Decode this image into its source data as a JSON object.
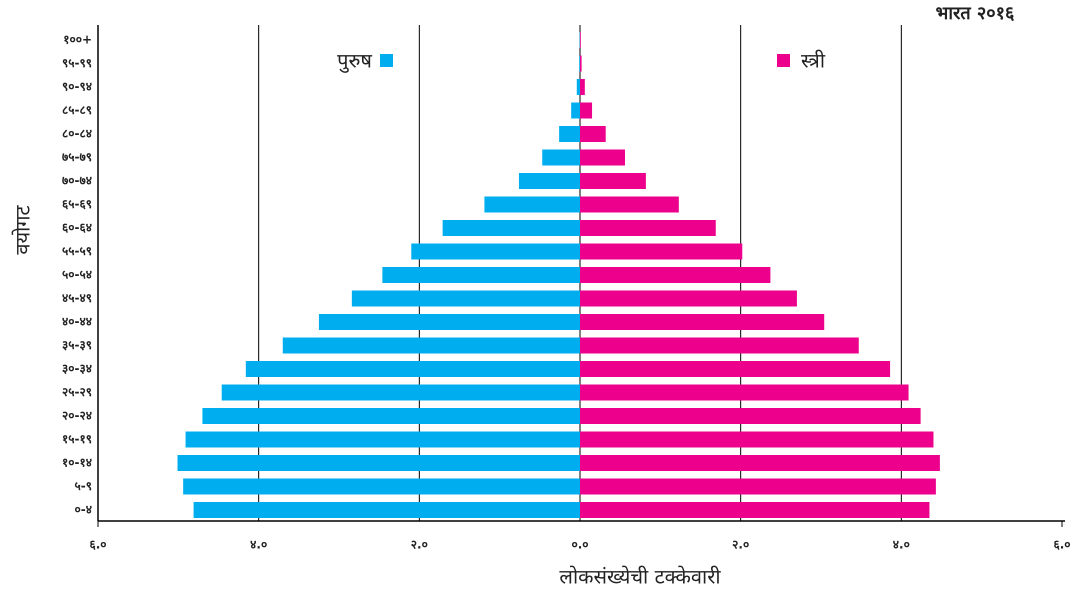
{
  "chart_data": {
    "type": "pyramid",
    "title": "भारत २०१६",
    "x_label": "लोकसंख्येची टक्केवारी",
    "y_label": "वयोगट",
    "categories": [
      "०-४",
      "५-९",
      "१०-१४",
      "१५-१९",
      "२०-२४",
      "२५-२९",
      "३०-३४",
      "३५-३९",
      "४०-४४",
      "४५-४९",
      "५०-५४",
      "५५-५९",
      "६०-६४",
      "६५-६९",
      "७०-७४",
      "७५-७९",
      "८०-८४",
      "८५-८९",
      "९०-९४",
      "९५-९९",
      "१००+"
    ],
    "series": [
      {
        "name": "पुरुष",
        "color": "#00aeef",
        "side": "left",
        "values": [
          4.81,
          4.94,
          5.01,
          4.91,
          4.7,
          4.46,
          4.16,
          3.7,
          3.25,
          2.84,
          2.46,
          2.1,
          1.71,
          1.19,
          0.76,
          0.47,
          0.26,
          0.11,
          0.04,
          0.01,
          0.005
        ]
      },
      {
        "name": "स्त्री",
        "color": "#ec008c",
        "side": "right",
        "values": [
          4.35,
          4.43,
          4.48,
          4.4,
          4.24,
          4.09,
          3.86,
          3.47,
          3.04,
          2.7,
          2.37,
          2.02,
          1.69,
          1.23,
          0.82,
          0.56,
          0.32,
          0.15,
          0.06,
          0.02,
          0.01
        ]
      }
    ],
    "xlim": [
      0,
      6
    ],
    "xticks": [
      {
        "value": 0,
        "label": "०.०"
      },
      {
        "value": 2,
        "label": "२.०"
      },
      {
        "value": 4,
        "label": "४.०"
      },
      {
        "value": 6,
        "label": "६.०"
      }
    ],
    "grid": true
  }
}
